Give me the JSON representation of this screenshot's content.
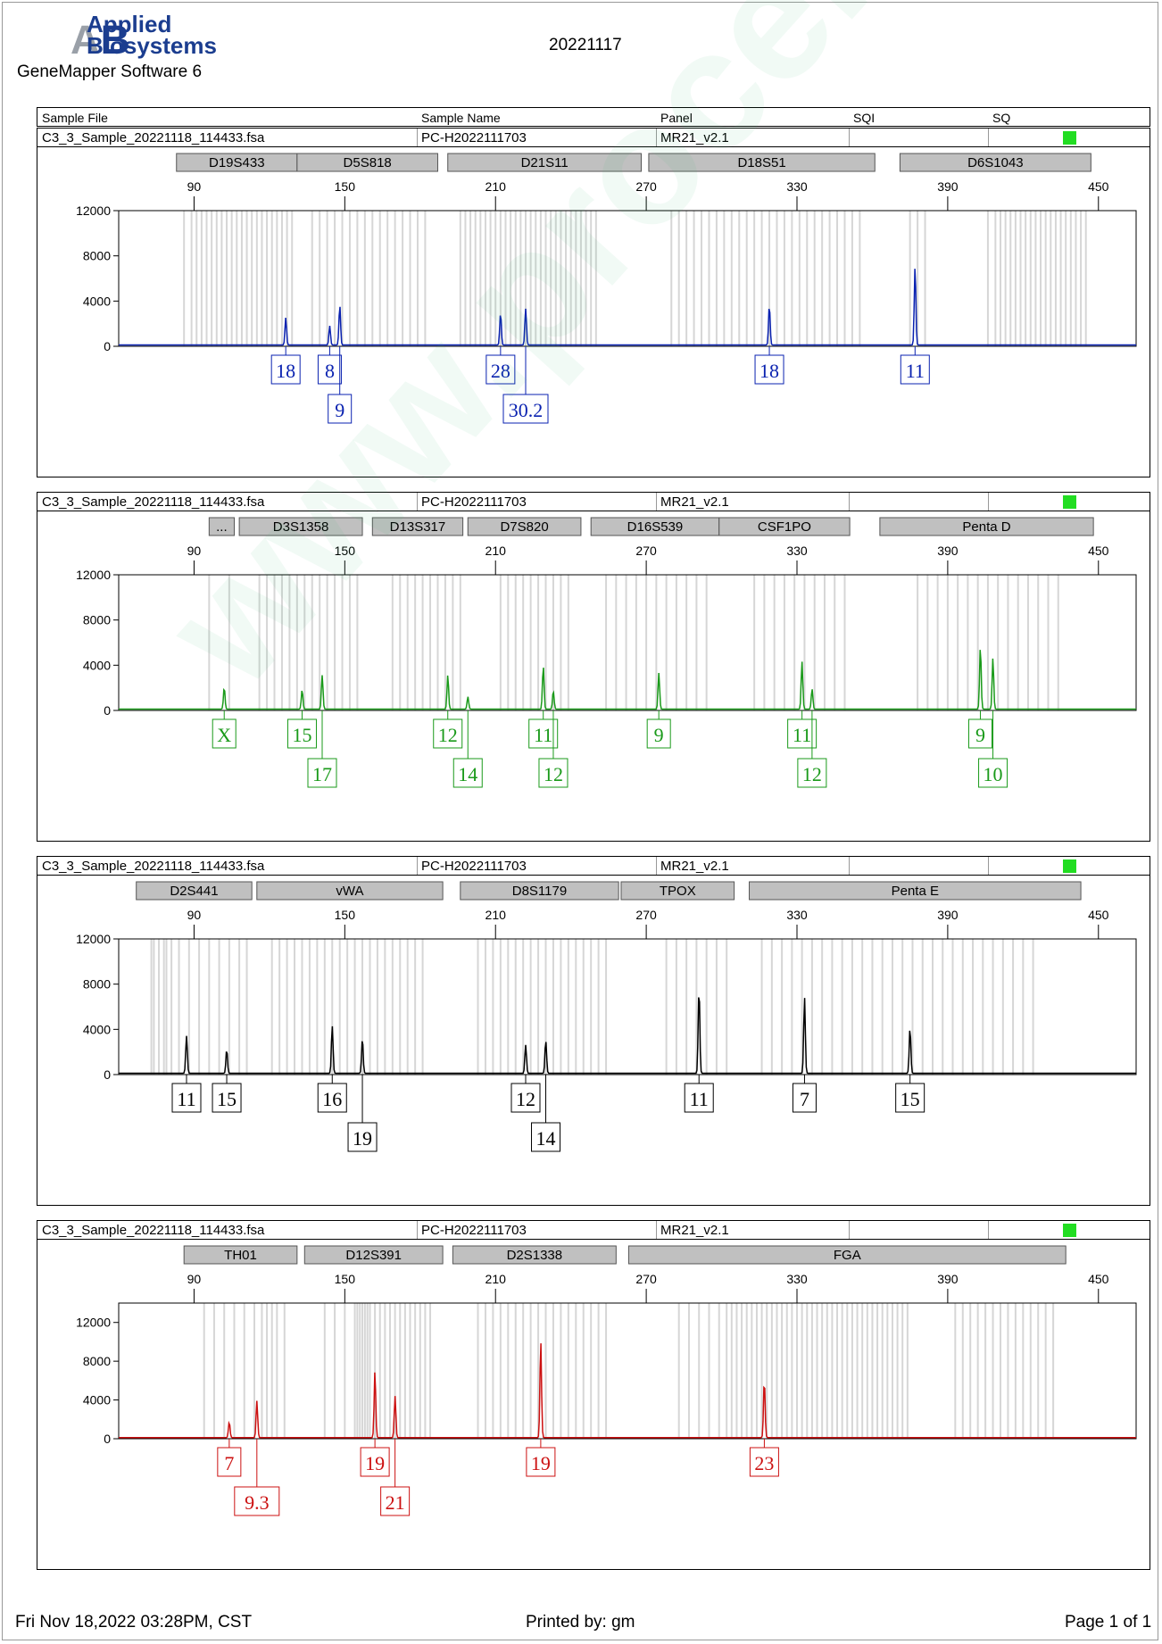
{
  "header": {
    "brand_line1": "Applied",
    "brand_line2": "Biosystems",
    "software": "GeneMapper Software 6",
    "run_date": "20221117"
  },
  "table_header": {
    "sample_file": "Sample File",
    "sample_name": "Sample Name",
    "panel": "Panel",
    "sqi": "SQI",
    "sq": "SQ"
  },
  "footer": {
    "printed_at": "Fri Nov 18,2022 03:28PM, CST",
    "printed_by": "Printed by: gm",
    "page": "Page 1 of 1"
  },
  "watermark": "www.procell.com.cn",
  "colors": {
    "blue": "#0a22b0",
    "green": "#1a9a1a",
    "black": "#000000",
    "red": "#cc1111",
    "quality": "#22dd22",
    "bin": "#d6d6d6",
    "marker_box": "#c0c0c0"
  },
  "chart_data": [
    {
      "type": "line",
      "title": "",
      "sample_file": "C3_3_Sample_20221118_114433.fsa",
      "sample_name": "PC-H2022111703",
      "panel": "MR21_v2.1",
      "dye_color": "#0a22b0",
      "xlim": [
        60,
        465
      ],
      "x_ticks": [
        90,
        150,
        210,
        270,
        330,
        390,
        450
      ],
      "ylim": [
        0,
        12000
      ],
      "y_ticks": [
        0,
        4000,
        8000,
        12000
      ],
      "markers": [
        {
          "name": "D19S433",
          "range": [
            83,
            131
          ]
        },
        {
          "name": "D5S818",
          "range": [
            131,
            187
          ]
        },
        {
          "name": "D21S11",
          "range": [
            191,
            268
          ]
        },
        {
          "name": "D18S51",
          "range": [
            271,
            361
          ]
        },
        {
          "name": "D6S1043",
          "range": [
            371,
            447
          ]
        }
      ],
      "peaks": [
        {
          "allele": "18",
          "size": 126.5,
          "height": 2400
        },
        {
          "allele": "8",
          "size": 144,
          "height": 1700
        },
        {
          "allele": "9",
          "size": 148,
          "height": 3500
        },
        {
          "allele": "28",
          "size": 212,
          "height": 2800
        },
        {
          "allele": "30.2",
          "size": 222,
          "height": 3200
        },
        {
          "allele": "18",
          "size": 319,
          "height": 3500
        },
        {
          "allele": "11",
          "size": 377,
          "height": 7000
        }
      ],
      "bins": [
        86,
        89,
        91,
        93,
        95,
        97,
        99,
        101,
        103,
        105,
        107,
        109,
        111,
        113,
        115,
        117,
        119,
        121,
        123,
        125,
        127,
        129,
        137,
        140,
        143,
        146,
        149,
        152,
        155,
        158,
        161,
        164,
        167,
        170,
        173,
        176,
        179,
        182,
        196,
        198,
        200,
        202,
        204,
        206,
        208,
        210,
        212,
        214,
        216,
        218,
        220,
        222,
        224,
        226,
        228,
        230,
        232,
        234,
        236,
        238,
        240,
        242,
        244,
        246,
        248,
        250,
        280,
        283,
        286,
        289,
        292,
        295,
        298,
        301,
        304,
        307,
        310,
        313,
        316,
        319,
        322,
        325,
        328,
        331,
        334,
        337,
        340,
        343,
        346,
        349,
        352,
        355,
        375,
        378,
        381,
        406,
        409,
        411,
        413,
        415,
        417,
        419,
        421,
        423,
        425,
        427,
        429,
        431,
        433,
        435,
        437,
        439,
        441,
        443,
        445
      ]
    },
    {
      "type": "line",
      "title": "",
      "sample_file": "C3_3_Sample_20221118_114433.fsa",
      "sample_name": "PC-H2022111703",
      "panel": "MR21_v2.1",
      "dye_color": "#1a9a1a",
      "xlim": [
        60,
        465
      ],
      "x_ticks": [
        90,
        150,
        210,
        270,
        330,
        390,
        450
      ],
      "ylim": [
        0,
        12000
      ],
      "y_ticks": [
        0,
        4000,
        8000,
        12000
      ],
      "markers": [
        {
          "name": "...",
          "range": [
            96,
            106
          ]
        },
        {
          "name": "D3S1358",
          "range": [
            108,
            157
          ]
        },
        {
          "name": "D13S317",
          "range": [
            161,
            197
          ]
        },
        {
          "name": "D7S820",
          "range": [
            199,
            244
          ]
        },
        {
          "name": "D16S539",
          "range": [
            248,
            299
          ]
        },
        {
          "name": "CSF1PO",
          "range": [
            299,
            351
          ]
        },
        {
          "name": "Penta D",
          "range": [
            363,
            448
          ]
        }
      ],
      "peaks": [
        {
          "allele": "X",
          "size": 102,
          "height": 1900
        },
        {
          "allele": "15",
          "size": 133,
          "height": 1700
        },
        {
          "allele": "17",
          "size": 141,
          "height": 3000
        },
        {
          "allele": "12",
          "size": 191,
          "height": 3000
        },
        {
          "allele": "14",
          "size": 199,
          "height": 1100
        },
        {
          "allele": "11",
          "size": 229,
          "height": 3800
        },
        {
          "allele": "12",
          "size": 233,
          "height": 1600
        },
        {
          "allele": "9",
          "size": 275,
          "height": 3200
        },
        {
          "allele": "11",
          "size": 332,
          "height": 4200
        },
        {
          "allele": "12",
          "size": 336,
          "height": 1800
        },
        {
          "allele": "9",
          "size": 403,
          "height": 5500
        },
        {
          "allele": "10",
          "size": 408,
          "height": 4500
        }
      ],
      "bins": [
        96,
        104,
        116,
        119,
        122,
        125,
        128,
        131,
        134,
        137,
        140,
        143,
        146,
        149,
        152,
        155,
        169,
        172,
        175,
        178,
        181,
        184,
        187,
        190,
        193,
        196,
        212,
        215,
        218,
        221,
        224,
        227,
        230,
        233,
        236,
        239,
        254,
        258,
        262,
        266,
        270,
        274,
        278,
        282,
        286,
        290,
        294,
        313,
        317,
        321,
        325,
        329,
        333,
        337,
        341,
        345,
        349,
        378,
        382,
        386,
        390,
        394,
        398,
        402,
        406,
        410,
        414,
        418,
        422,
        426,
        430,
        434
      ]
    },
    {
      "type": "line",
      "title": "",
      "sample_file": "C3_3_Sample_20221118_114433.fsa",
      "sample_name": "PC-H2022111703",
      "panel": "MR21_v2.1",
      "dye_color": "#000000",
      "xlim": [
        60,
        465
      ],
      "x_ticks": [
        90,
        150,
        210,
        270,
        330,
        390,
        450
      ],
      "ylim": [
        0,
        12000
      ],
      "y_ticks": [
        0,
        4000,
        8000,
        12000
      ],
      "markers": [
        {
          "name": "D2S441",
          "range": [
            67,
            113
          ]
        },
        {
          "name": "vWA",
          "range": [
            115,
            189
          ]
        },
        {
          "name": "D8S1179",
          "range": [
            196,
            259
          ]
        },
        {
          "name": "TPOX",
          "range": [
            260,
            305
          ]
        },
        {
          "name": "Penta E",
          "range": [
            311,
            443
          ]
        }
      ],
      "peaks": [
        {
          "allele": "11",
          "size": 87,
          "height": 3300
        },
        {
          "allele": "15",
          "size": 103,
          "height": 2100
        },
        {
          "allele": "16",
          "size": 145,
          "height": 4200
        },
        {
          "allele": "19",
          "size": 157,
          "height": 3100
        },
        {
          "allele": "12",
          "size": 222,
          "height": 2500
        },
        {
          "allele": "14",
          "size": 230,
          "height": 2900
        },
        {
          "allele": "11",
          "size": 291,
          "height": 7500
        },
        {
          "allele": "7",
          "size": 333,
          "height": 6700
        },
        {
          "allele": "15",
          "size": 375,
          "height": 4000
        }
      ],
      "bins": [
        73,
        74,
        76,
        78,
        79,
        81,
        84,
        88,
        92,
        96,
        100,
        104,
        108,
        111,
        121,
        124,
        127,
        130,
        133,
        136,
        139,
        142,
        145,
        148,
        151,
        154,
        157,
        160,
        163,
        166,
        169,
        172,
        175,
        178,
        181,
        203,
        206,
        209,
        212,
        215,
        218,
        221,
        224,
        227,
        230,
        233,
        236,
        239,
        242,
        245,
        248,
        251,
        254,
        278,
        282,
        286,
        290,
        294,
        298,
        302,
        316,
        320,
        324,
        328,
        332,
        336,
        340,
        344,
        348,
        352,
        356,
        360,
        364,
        368,
        372,
        376,
        380,
        384,
        388,
        392,
        396,
        400,
        404,
        408,
        412,
        416,
        420,
        424
      ]
    },
    {
      "type": "line",
      "title": "",
      "sample_file": "C3_3_Sample_20221118_114433.fsa",
      "sample_name": "PC-H2022111703",
      "panel": "MR21_v2.1",
      "dye_color": "#cc1111",
      "xlim": [
        60,
        465
      ],
      "x_ticks": [
        90,
        150,
        210,
        270,
        330,
        390,
        450
      ],
      "ylim": [
        0,
        14000
      ],
      "y_ticks": [
        0,
        4000,
        8000,
        12000
      ],
      "markers": [
        {
          "name": "TH01",
          "range": [
            86,
            131
          ]
        },
        {
          "name": "D12S391",
          "range": [
            134,
            189
          ]
        },
        {
          "name": "D2S1338",
          "range": [
            193,
            258
          ]
        },
        {
          "name": "FGA",
          "range": [
            263,
            437
          ]
        }
      ],
      "peaks": [
        {
          "allele": "7",
          "size": 104,
          "height": 1600
        },
        {
          "allele": "9.3",
          "size": 115,
          "height": 3800
        },
        {
          "allele": "19",
          "size": 162,
          "height": 6900
        },
        {
          "allele": "21",
          "size": 170,
          "height": 4300
        },
        {
          "allele": "19",
          "size": 228,
          "height": 10000
        },
        {
          "allele": "23",
          "size": 317,
          "height": 5900
        }
      ],
      "bins": [
        94,
        98,
        102,
        106,
        110,
        114,
        117,
        119,
        121,
        123,
        126,
        142,
        146,
        150,
        154,
        155,
        156,
        157,
        158,
        159,
        160,
        162,
        164,
        166,
        168,
        170,
        172,
        174,
        176,
        178,
        180,
        182,
        184,
        203,
        206,
        209,
        212,
        215,
        218,
        221,
        224,
        227,
        230,
        233,
        236,
        239,
        242,
        245,
        248,
        251,
        254,
        283,
        287,
        291,
        295,
        299,
        302,
        304,
        306,
        308,
        310,
        312,
        314,
        316,
        318,
        320,
        322,
        324,
        326,
        328,
        330,
        332,
        334,
        336,
        338,
        340,
        342,
        344,
        346,
        348,
        350,
        352,
        354,
        356,
        358,
        360,
        362,
        364,
        366,
        368,
        370,
        372,
        374,
        393,
        396,
        399,
        402,
        405,
        408,
        411,
        414,
        417,
        420,
        423,
        426,
        429,
        432
      ]
    }
  ]
}
